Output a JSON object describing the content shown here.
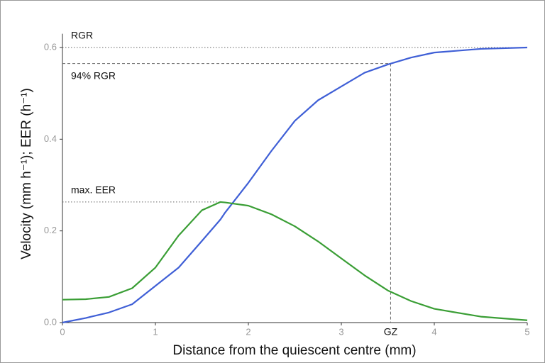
{
  "chart_data": {
    "type": "line",
    "x_label": "Distance from the quiescent centre (mm)",
    "y_label": "Velocity (mm h⁻¹); EER (h⁻¹)",
    "x": [
      0,
      0.25,
      0.5,
      0.75,
      1,
      1.25,
      1.5,
      1.7,
      1.75,
      2,
      2.25,
      2.5,
      2.75,
      3,
      3.25,
      3.5,
      3.75,
      4,
      4.5,
      5
    ],
    "series": [
      {
        "color": "#3f5fd6",
        "values": [
          0,
          0.01,
          0.022,
          0.04,
          0.08,
          0.12,
          0.178,
          0.225,
          0.24,
          0.305,
          0.375,
          0.44,
          0.485,
          0.515,
          0.545,
          0.563,
          0.578,
          0.589,
          0.597,
          0.6
        ]
      },
      {
        "color": "#3a9e35",
        "values": [
          0.05,
          0.051,
          0.056,
          0.075,
          0.12,
          0.19,
          0.245,
          0.263,
          0.262,
          0.255,
          0.236,
          0.21,
          0.177,
          0.14,
          0.103,
          0.07,
          0.047,
          0.03,
          0.013,
          0.005
        ]
      }
    ],
    "annotations": [
      {
        "text": "RGR",
        "y": 0.6
      },
      {
        "text": "94% RGR",
        "y": 0.565,
        "x": 3.53
      },
      {
        "text": "max. EER",
        "y": 0.263,
        "x": 1.7
      }
    ],
    "x_marker": {
      "value": 3.53,
      "label": "GZ"
    },
    "xlim": [
      0,
      5
    ],
    "ylim": [
      0,
      0.63
    ],
    "xticks": [
      0,
      1,
      2,
      3,
      4,
      5
    ],
    "yticks": [
      {
        "value": 0,
        "label": "0.0"
      },
      0.2,
      0.4,
      0.6
    ]
  }
}
